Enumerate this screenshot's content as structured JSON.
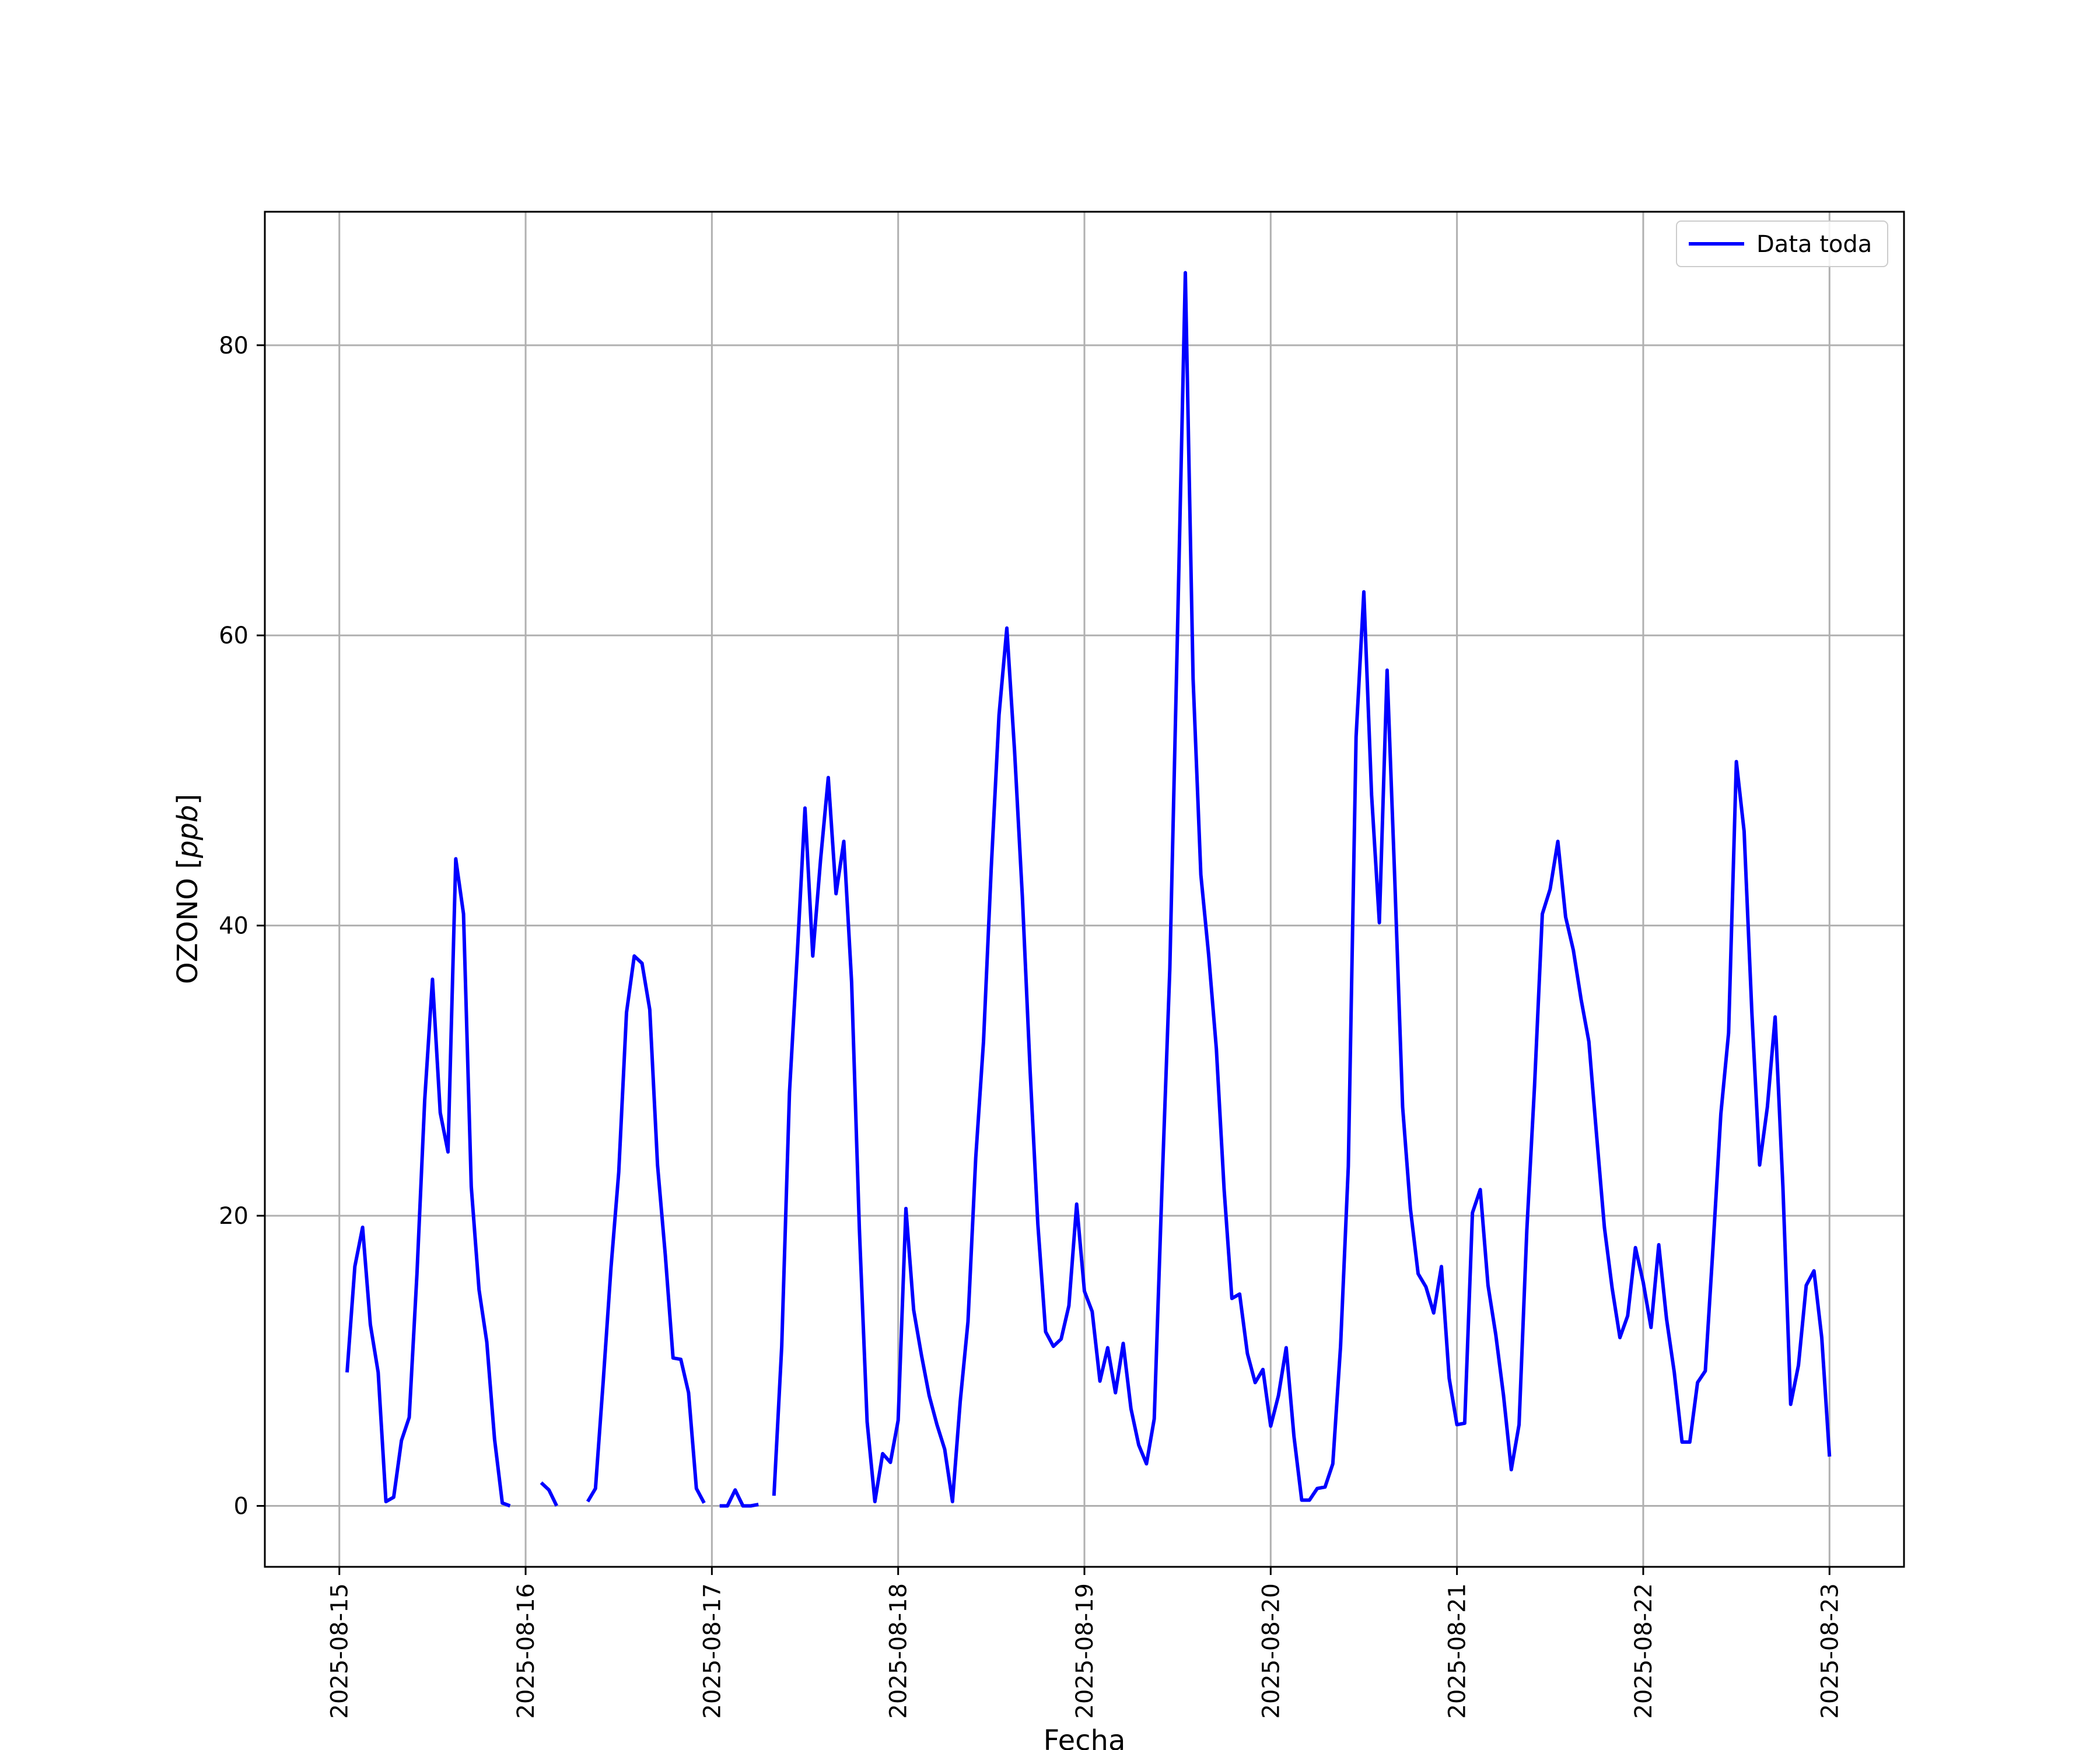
{
  "chart_data": {
    "type": "line",
    "title": "",
    "xlabel": "Fecha",
    "ylabel": "OZONO [ppb]",
    "ylabel_parts": {
      "name": "OZONO ",
      "open": "[",
      "unit": "ppb",
      "close": "]"
    },
    "xlim": [
      "2025-08-14 14:24",
      "2025-08-23 09:36"
    ],
    "ylim": [
      -4.2,
      89.2
    ],
    "x_ticks": [
      "2025-08-15",
      "2025-08-16",
      "2025-08-17",
      "2025-08-18",
      "2025-08-19",
      "2025-08-20",
      "2025-08-21",
      "2025-08-22",
      "2025-08-23"
    ],
    "y_ticks": [
      0,
      20,
      40,
      60,
      80
    ],
    "grid": true,
    "legend_position": "top-right",
    "colors": {
      "line": "#0000ff",
      "grid": "#b0b0b0",
      "axes": "#000000"
    },
    "series": [
      {
        "name": "Data toda",
        "start": "2025-08-15 01:00",
        "step_hours": 1,
        "values": [
          9.2,
          16.5,
          19.2,
          12.5,
          9.2,
          0.3,
          0.6,
          4.5,
          6.1,
          16.0,
          28.0,
          36.3,
          27.1,
          24.4,
          44.6,
          40.8,
          22.0,
          14.9,
          11.3,
          4.6,
          0.2,
          0.0,
          null,
          null,
          null,
          1.6,
          1.1,
          0.0,
          null,
          null,
          null,
          0.3,
          1.2,
          8.6,
          16.4,
          23.0,
          34.0,
          37.9,
          37.4,
          34.2,
          23.5,
          17.3,
          10.2,
          10.1,
          7.8,
          1.2,
          0.2,
          null,
          0.0,
          0.0,
          1.1,
          0.0,
          0.0,
          0.1,
          null,
          0.7,
          11.0,
          28.5,
          38.0,
          48.1,
          37.9,
          44.5,
          50.2,
          42.2,
          45.8,
          36.1,
          19.1,
          5.8,
          0.3,
          3.6,
          3.0,
          5.9,
          20.5,
          13.5,
          10.4,
          7.6,
          5.6,
          3.9,
          0.3,
          7.2,
          12.7,
          24.0,
          32.0,
          44.0,
          54.5,
          60.5,
          52.0,
          42.0,
          30.0,
          19.4,
          12.0,
          11.0,
          11.5,
          13.8,
          20.8,
          14.8,
          13.4,
          8.6,
          10.9,
          7.8,
          11.2,
          6.7,
          4.2,
          2.9,
          6.0,
          22.0,
          37.0,
          60.5,
          85.0,
          57.0,
          43.5,
          38.0,
          31.5,
          21.8,
          14.3,
          14.6,
          10.5,
          8.5,
          9.4,
          5.5,
          7.6,
          10.9,
          4.8,
          0.4,
          0.4,
          1.2,
          1.3,
          2.9,
          11.0,
          23.4,
          53.0,
          63.0,
          49.0,
          40.2,
          57.6,
          43.0,
          27.5,
          20.5,
          16.0,
          15.1,
          13.3,
          16.5,
          8.8,
          5.6,
          5.7,
          20.2,
          21.8,
          15.2,
          11.8,
          7.6,
          2.5,
          5.6,
          19.0,
          29.0,
          40.8,
          42.5,
          45.8,
          40.6,
          38.3,
          34.9,
          32.0,
          25.5,
          19.2,
          15.0,
          11.6,
          13.1,
          17.8,
          15.4,
          12.3,
          18.0,
          12.9,
          9.2,
          4.4,
          4.4,
          8.5,
          9.3,
          17.9,
          27.0,
          32.6,
          51.3,
          46.5,
          34.0,
          23.5,
          27.5,
          33.7,
          22.0,
          7.0,
          9.7,
          15.2,
          16.2,
          11.6,
          3.4
        ]
      }
    ]
  }
}
